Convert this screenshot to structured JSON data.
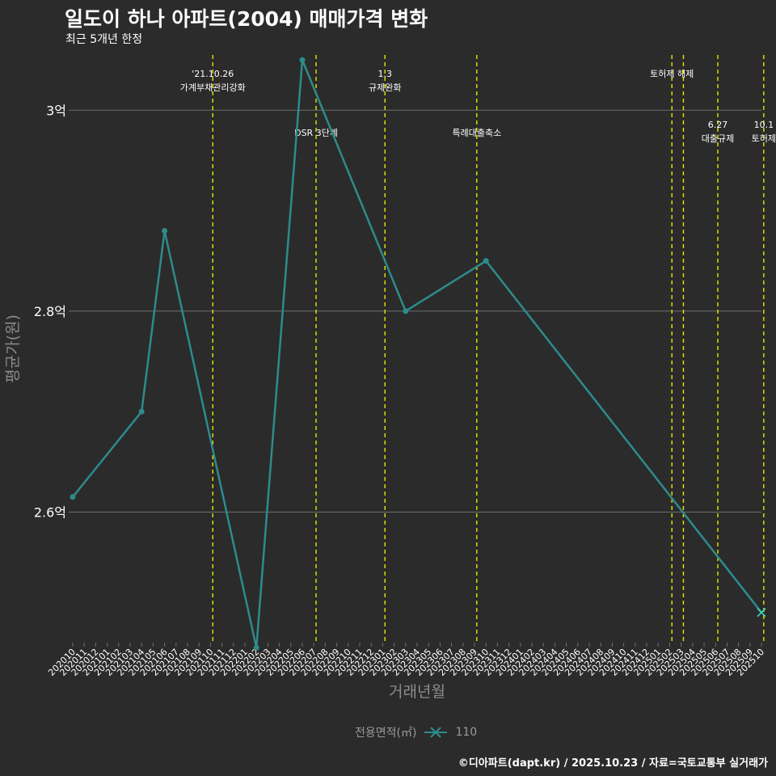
{
  "title": "일도이 하나 아파트(2004) 매매가격 변화",
  "subtitle": "최근 5개년 한정",
  "caption": "©디아파트(dapt.kr) / 2025.10.23 / 자료=국토교통부 실거래가",
  "legend": {
    "title": "전용면적(㎡)",
    "label": "110"
  },
  "colors": {
    "background": "#2b2b2b",
    "line": "#2e8b8b",
    "last_point": "#3fd4c0",
    "event_line": "#e6e600",
    "grid": "#6e6e6e",
    "axis_text": "#ffffff",
    "axis_title": "#8c8c8c"
  },
  "chart_data": {
    "type": "line",
    "title": "일도이 하나 아파트(2004) 매매가격 변화",
    "xlabel": "거래년월",
    "ylabel": "평균가(원)",
    "ylim": [
      24700,
      30550
    ],
    "yticks": [
      {
        "value": 26000,
        "label": "2.6억"
      },
      {
        "value": 28000,
        "label": "2.8억"
      },
      {
        "value": 30000,
        "label": "3억"
      }
    ],
    "categories": [
      "202010",
      "202011",
      "202012",
      "202101",
      "202102",
      "202103",
      "202104",
      "202105",
      "202106",
      "202107",
      "202108",
      "202109",
      "202110",
      "202111",
      "202112",
      "202201",
      "202202",
      "202203",
      "202204",
      "202205",
      "202206",
      "202207",
      "202208",
      "202209",
      "202210",
      "202211",
      "202212",
      "202301",
      "202302",
      "202303",
      "202304",
      "202305",
      "202306",
      "202307",
      "202308",
      "202309",
      "202310",
      "202311",
      "202312",
      "202401",
      "202402",
      "202403",
      "202404",
      "202405",
      "202406",
      "202407",
      "202408",
      "202409",
      "202410",
      "202411",
      "202412",
      "202501",
      "202502",
      "202503",
      "202504",
      "202505",
      "202506",
      "202507",
      "202508",
      "202509",
      "202510"
    ],
    "series": [
      {
        "name": "110",
        "points": [
          {
            "x": 0,
            "y": 26150
          },
          {
            "x": 6,
            "y": 27000
          },
          {
            "x": 8,
            "y": 28800
          },
          {
            "x": 16,
            "y": 24650
          },
          {
            "x": 20,
            "y": 30500
          },
          {
            "x": 29,
            "y": 28000
          },
          {
            "x": 36,
            "y": 28500
          },
          {
            "x": 60,
            "y": 25000
          }
        ]
      }
    ],
    "events": [
      {
        "x": 12.2,
        "lines": [
          "'21.10.26",
          "가계부채관리강화"
        ],
        "level": 1
      },
      {
        "x": 21.2,
        "lines": [
          "DSR 3단계"
        ],
        "level": 2
      },
      {
        "x": 27.2,
        "lines": [
          "1.3",
          "규제완화"
        ],
        "level": 1
      },
      {
        "x": 35.2,
        "lines": [
          "특례대출축소"
        ],
        "level": 2
      },
      {
        "x": 52.2,
        "lines": [
          "토허제 해제"
        ],
        "level": 1
      },
      {
        "x": 53.2,
        "lines": [],
        "level": 0
      },
      {
        "x": 56.2,
        "lines": [
          "6.27",
          "대출규제"
        ],
        "level": 3
      },
      {
        "x": 60.2,
        "lines": [
          "10.1",
          "토허제"
        ],
        "level": 3
      }
    ]
  }
}
